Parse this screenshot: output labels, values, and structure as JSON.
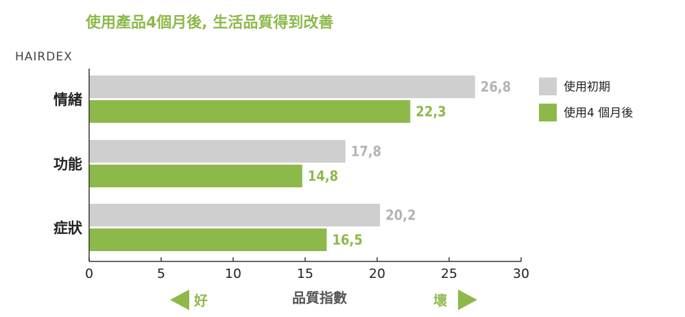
{
  "header": {
    "title": "使用產品4個月後, 生活品質得到改善",
    "brand": "HAIRDEX"
  },
  "colors": {
    "accent": "#8db94b",
    "gray_bar": "#cfcfcf",
    "gray_text": "#b3b3b3",
    "axis": "#333333",
    "label_text": "#222222"
  },
  "chart_data": {
    "type": "bar",
    "orientation": "horizontal",
    "categories": [
      "情緒",
      "功能",
      "症狀"
    ],
    "series": [
      {
        "name": "使用初期",
        "values": [
          26.8,
          17.8,
          20.2
        ],
        "value_labels": [
          "26,8",
          "17,8",
          "20,2"
        ]
      },
      {
        "name": "使用4 個月後",
        "values": [
          22.3,
          14.8,
          16.5
        ],
        "value_labels": [
          "22,3",
          "14,8",
          "16,5"
        ]
      }
    ],
    "xlim": [
      0,
      30
    ],
    "xticks": [
      0,
      5,
      10,
      15,
      20,
      25,
      30
    ],
    "xlabel": "品質指數",
    "direction_good": "好",
    "direction_bad": "壞",
    "grid": false,
    "legend_position": "right"
  }
}
